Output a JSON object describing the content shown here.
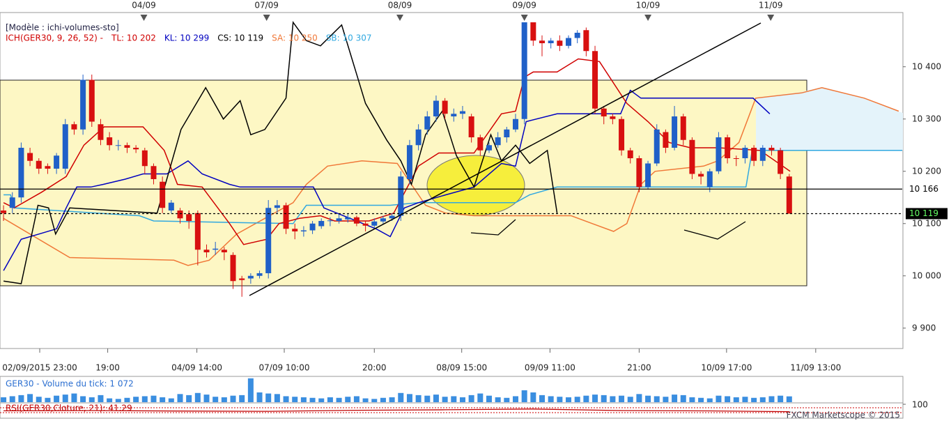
{
  "chart_data": {
    "type": "candlestick",
    "header": {
      "template": "[Modèle : ichi-volumes-sto]",
      "pieces": [
        {
          "text": "ICH(GER30, 9, 26, 52) -",
          "color": "#d00000"
        },
        {
          "text": "TL: 10 202",
          "color": "#d00000"
        },
        {
          "text": "KL: 10 299",
          "color": "#0000c0"
        },
        {
          "text": "CS: 10 119",
          "color": "#000000"
        },
        {
          "text": "SA: 10 250",
          "color": "#f07838"
        },
        {
          "text": "SB: 10 307",
          "color": "#30a8e0"
        }
      ]
    },
    "xlim": [
      -0.4,
      101.8
    ],
    "ylim": [
      9861,
      10485
    ],
    "yticks": [
      {
        "value": 9900,
        "label": "9 900"
      },
      {
        "value": 10000,
        "label": "10 000"
      },
      {
        "value": 10100,
        "label": "10 100"
      },
      {
        "value": 10200,
        "label": "10 200"
      },
      {
        "value": 10300,
        "label": "10 300"
      },
      {
        "value": 10400,
        "label": "10 400"
      }
    ],
    "top_ticks": [
      {
        "value": 15.9,
        "label": "04/09"
      },
      {
        "value": 29.8,
        "label": "07/09"
      },
      {
        "value": 44.9,
        "label": "08/09"
      },
      {
        "value": 59,
        "label": "09/09"
      },
      {
        "value": 73,
        "label": "10/09"
      },
      {
        "value": 86.9,
        "label": "11/09"
      }
    ],
    "xticks": [
      {
        "value": 4.1,
        "label": "02/09/2015 23:00"
      },
      {
        "value": 11.8,
        "label": "19:00"
      },
      {
        "value": 21.9,
        "label": "04/09 14:00"
      },
      {
        "value": 31.8,
        "label": "07/09 10:00"
      },
      {
        "value": 42,
        "label": "20:00"
      },
      {
        "value": 51.9,
        "label": "08/09 15:00"
      },
      {
        "value": 61.9,
        "label": "09/09 11:00"
      },
      {
        "value": 72,
        "label": "21:00"
      },
      {
        "value": 81.9,
        "label": "10/09 17:00"
      },
      {
        "value": 92,
        "label": "11/09 13:00"
      }
    ],
    "up_color": "#2060c8",
    "down_color": "#d81010",
    "open": [
      10125,
      10130,
      10150,
      10235,
      10220,
      10210,
      10205,
      10205,
      10290,
      10280,
      10375,
      10290,
      10265,
      10250,
      10250,
      10245,
      10240,
      10210,
      10180,
      10125,
      10125,
      10118,
      10120,
      10050,
      10050,
      10050,
      10040,
      9995,
      9995,
      10000,
      10005,
      10130,
      10135,
      10090,
      10085,
      10087,
      10095,
      10105,
      10105,
      10108,
      10112,
      10100,
      10096,
      10104,
      10110,
      10115,
      10185,
      10250,
      10280,
      10305,
      10335,
      10305,
      10310,
      10305,
      10265,
      10240,
      10250,
      10265,
      10280,
      10300,
      10485,
      10450,
      10445,
      10450,
      10440,
      10455,
      10470,
      10430,
      10320,
      10305,
      10300,
      10240,
      10225,
      10170,
      10215,
      10275,
      10245,
      10305,
      10260,
      10195,
      10170,
      10200,
      10265,
      10225,
      10225,
      10245,
      10220,
      10245,
      10240,
      10190
    ],
    "high": [
      10135,
      10160,
      10255,
      10245,
      10225,
      10215,
      10235,
      10300,
      10295,
      10385,
      10385,
      10300,
      10275,
      10260,
      10255,
      10250,
      10245,
      10215,
      10190,
      10145,
      10130,
      10125,
      10125,
      10060,
      10065,
      10055,
      10045,
      10000,
      10005,
      10010,
      10145,
      10145,
      10140,
      10100,
      10095,
      10105,
      10110,
      10112,
      10118,
      10118,
      10115,
      10105,
      10110,
      10115,
      10120,
      10200,
      10260,
      10290,
      10315,
      10345,
      10340,
      10320,
      10325,
      10310,
      10270,
      10255,
      10275,
      10285,
      10310,
      10485,
      10485,
      10460,
      10455,
      10460,
      10460,
      10470,
      10475,
      10440,
      10325,
      10310,
      10305,
      10245,
      10230,
      10220,
      10290,
      10280,
      10325,
      10310,
      10265,
      10200,
      10205,
      10275,
      10270,
      10230,
      10250,
      10250,
      10250,
      10250,
      10245,
      10195
    ],
    "low": [
      10105,
      10120,
      10140,
      10210,
      10195,
      10195,
      10195,
      10195,
      10270,
      10270,
      10285,
      10250,
      10240,
      10240,
      10235,
      10235,
      10195,
      10175,
      10120,
      10120,
      10100,
      10090,
      10020,
      10035,
      10040,
      10030,
      9975,
      9960,
      9985,
      9995,
      9995,
      10120,
      10080,
      10070,
      10075,
      10080,
      10090,
      10095,
      10100,
      10102,
      10095,
      10085,
      10090,
      10100,
      10105,
      10105,
      10175,
      10240,
      10270,
      10295,
      10300,
      10295,
      10300,
      10255,
      10230,
      10235,
      10245,
      10255,
      10275,
      10290,
      10440,
      10420,
      10435,
      10430,
      10435,
      10445,
      10420,
      10310,
      10290,
      10290,
      10230,
      10215,
      10160,
      10165,
      10210,
      10235,
      10240,
      10250,
      10185,
      10175,
      10160,
      10195,
      10215,
      10210,
      10215,
      10210,
      10210,
      10230,
      10185,
      10119
    ],
    "close": [
      10120,
      10150,
      10245,
      10220,
      10205,
      10205,
      10230,
      10290,
      10280,
      10375,
      10295,
      10260,
      10250,
      10250,
      10245,
      10242,
      10210,
      10185,
      10130,
      10140,
      10110,
      10105,
      10050,
      10045,
      10052,
      10045,
      9990,
      9992,
      10000,
      10005,
      10130,
      10135,
      10090,
      10085,
      10087,
      10100,
      10105,
      10106,
      10110,
      10112,
      10100,
      10096,
      10104,
      10110,
      10115,
      10190,
      10250,
      10280,
      10305,
      10335,
      10310,
      10310,
      10315,
      10265,
      10240,
      10250,
      10265,
      10280,
      10300,
      10485,
      10450,
      10445,
      10450,
      10440,
      10455,
      10465,
      10430,
      10320,
      10305,
      10300,
      10240,
      10225,
      10170,
      10215,
      10280,
      10245,
      10305,
      10260,
      10195,
      10190,
      10200,
      10265,
      10225,
      10224,
      10245,
      10220,
      10245,
      10240,
      10195,
      10119
    ],
    "lines": [
      {
        "color": "#f07838",
        "x": [
          0,
          7.5,
          19.3,
          20.9,
          23.3,
          26.4,
          29.6,
          32.8,
          34.3,
          36.7,
          40.6,
          44.6,
          46.2,
          47.8,
          50.1,
          53.3,
          64.3,
          66.7,
          69.1,
          70.6,
          72.2,
          73.8,
          79.3,
          80.9,
          83.3,
          85.2,
          90.4,
          92.7,
          97.5,
          101.4
        ],
        "values": [
          10110,
          10035,
          10030,
          10020,
          10030,
          10080,
          10110,
          10140,
          10175,
          10210,
          10220,
          10215,
          10175,
          10135,
          10120,
          10115,
          10115,
          10100,
          10085,
          10100,
          10175,
          10200,
          10210,
          10220,
          10255,
          10340,
          10350,
          10360,
          10340,
          10315
        ]
      },
      {
        "color": "#30a8e0",
        "x": [
          0,
          0.8,
          1.2,
          15.4,
          17,
          32.8,
          34.3,
          43.8,
          47,
          58,
          59.6,
          62.7,
          84.1,
          84.8,
          101.8
        ],
        "values": [
          10155,
          10155,
          10130,
          10115,
          10105,
          10100,
          10135,
          10135,
          10140,
          10140,
          10155,
          10170,
          10170,
          10240,
          10240
        ]
      },
      {
        "color": "#0000c0",
        "x": [
          0,
          2,
          4,
          6,
          7.1,
          8.3,
          9.9,
          11.3,
          13.8,
          15.8,
          18.5,
          20.9,
          22.5,
          25.6,
          26.8,
          33.5,
          35.1,
          36.3,
          42.2,
          43.8,
          45.4,
          47,
          50.1,
          53.3,
          56.4,
          58,
          59.2,
          62.7,
          69.9,
          71,
          72.2,
          84.9,
          86.8
        ],
        "values": [
          10010,
          10070,
          10080,
          10090,
          10130,
          10170,
          10170,
          10175,
          10185,
          10195,
          10195,
          10220,
          10195,
          10175,
          10170,
          10170,
          10170,
          10130,
          10090,
          10075,
          10130,
          10140,
          10155,
          10170,
          10215,
          10210,
          10295,
          10310,
          10310,
          10355,
          10340,
          10340,
          10310
        ]
      },
      {
        "color": "#d00000",
        "x": [
          0,
          1.2,
          4.3,
          7.1,
          9.1,
          11.4,
          15.8,
          18.2,
          19.7,
          22.5,
          25.6,
          27.2,
          29.8,
          31.2,
          33.5,
          35.9,
          37.5,
          41.4,
          44.2,
          47,
          49.3,
          53.3,
          56.4,
          58,
          59,
          60,
          62.7,
          65.1,
          67.5,
          70.6,
          73,
          75.4,
          77.8,
          81,
          85.7,
          89.1
        ],
        "values": [
          10140,
          10130,
          10160,
          10190,
          10250,
          10285,
          10285,
          10240,
          10175,
          10170,
          10100,
          10060,
          10070,
          10100,
          10110,
          10115,
          10105,
          10105,
          10120,
          10210,
          10235,
          10235,
          10310,
          10315,
          10380,
          10390,
          10390,
          10415,
          10410,
          10330,
          10295,
          10255,
          10245,
          10245,
          10240,
          10200
        ]
      },
      {
        "color": "#000000",
        "x": [
          0,
          2,
          3.9,
          5.1,
          5.9,
          7.5,
          17.4,
          20.1,
          22.9,
          24.9,
          26.8,
          28,
          29.6,
          32,
          32.8,
          34.3,
          35.9,
          38.3,
          41,
          43.4,
          45,
          46.2,
          47.8,
          49.7,
          51.3,
          53.3,
          55.2,
          56.4,
          58,
          59.6,
          61.6,
          62.7
        ],
        "values": [
          9990,
          9985,
          10135,
          10130,
          10080,
          10130,
          10120,
          10280,
          10360,
          10300,
          10335,
          10270,
          10280,
          10340,
          10485,
          10450,
          10440,
          10480,
          10330,
          10260,
          10220,
          10175,
          10270,
          10315,
          10230,
          10170,
          10270,
          10220,
          10250,
          10215,
          10240,
          10120
        ]
      }
    ],
    "levels": [
      {
        "value": 10166,
        "label": "10 166",
        "dashed": false
      },
      {
        "value": 10119,
        "label": "10 119",
        "dashed": true
      }
    ],
    "volume": {
      "label": "GER30 - Volume du tick: 1 072",
      "color": "#3a8ee0",
      "ylim": [
        0,
        4500
      ],
      "values": [
        900,
        1100,
        1300,
        1500,
        1000,
        800,
        1200,
        1400,
        1600,
        1100,
        900,
        1300,
        700,
        600,
        800,
        1000,
        1100,
        1200,
        900,
        700,
        1500,
        1300,
        1700,
        1400,
        1000,
        900,
        1200,
        1300,
        4400,
        1800,
        1600,
        1500,
        1100,
        1000,
        900,
        800,
        700,
        900,
        800,
        1000,
        1100,
        700,
        600,
        800,
        900,
        1700,
        1500,
        1300,
        1200,
        1400,
        1000,
        1100,
        900,
        1300,
        1600,
        1200,
        900,
        800,
        1100,
        2200,
        1800,
        1300,
        1100,
        1000,
        900,
        1000,
        1200,
        1400,
        1300,
        1100,
        1200,
        1000,
        1500,
        1200,
        1100,
        1000,
        1400,
        1300,
        900,
        800,
        700,
        1200,
        1100,
        900,
        1000,
        800,
        900,
        1100,
        1200,
        1072
      ]
    },
    "rsi": {
      "label": "RSI(GER30,Cloture, 21): 41.29",
      "color": "#c00000",
      "ylim": [
        0,
        100
      ],
      "ytick": 100,
      "x": [
        0,
        10,
        20,
        30,
        40,
        50,
        60,
        70,
        80,
        89
      ],
      "values": [
        48,
        50,
        46,
        44,
        52,
        56,
        62,
        50,
        47,
        41.29
      ]
    },
    "footer": "FXCM Marketscope © 2015"
  }
}
